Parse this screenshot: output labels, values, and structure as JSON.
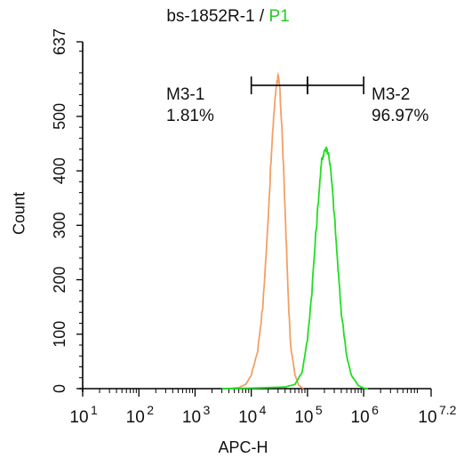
{
  "title": {
    "sample": "bs-1852R-1",
    "separator": " / ",
    "gate": "P1"
  },
  "colors": {
    "control": "#f2a064",
    "sample": "#22dd22",
    "axis": "#000000",
    "title_gate": "#22cc22"
  },
  "chart_data": {
    "type": "histogram",
    "xlabel": "APC-H",
    "ylabel": "Count",
    "x_scale": "log",
    "xlim": [
      10,
      15848932
    ],
    "ylim": [
      0,
      637
    ],
    "x_ticks": [
      {
        "base": "10",
        "exp": "1",
        "value": 10
      },
      {
        "base": "10",
        "exp": "2",
        "value": 100
      },
      {
        "base": "10",
        "exp": "3",
        "value": 1000
      },
      {
        "base": "10",
        "exp": "4",
        "value": 10000
      },
      {
        "base": "10",
        "exp": "5",
        "value": 100000
      },
      {
        "base": "10",
        "exp": "6",
        "value": 1000000
      },
      {
        "base": "10",
        "exp": "7.2",
        "value": 15848932
      }
    ],
    "y_ticks": [
      "0",
      "100",
      "200",
      "300",
      "400",
      "500",
      "637"
    ],
    "series": [
      {
        "role": "control",
        "color": "#f2a064",
        "points": [
          [
            4000,
            0
          ],
          [
            6000,
            2
          ],
          [
            8000,
            8
          ],
          [
            10000,
            25
          ],
          [
            13000,
            70
          ],
          [
            16000,
            150
          ],
          [
            19000,
            270
          ],
          [
            22000,
            400
          ],
          [
            25000,
            500
          ],
          [
            28000,
            560
          ],
          [
            30000,
            572
          ],
          [
            32000,
            555
          ],
          [
            35000,
            480
          ],
          [
            40000,
            330
          ],
          [
            45000,
            180
          ],
          [
            50000,
            80
          ],
          [
            60000,
            25
          ],
          [
            70000,
            6
          ],
          [
            85000,
            0
          ]
        ]
      },
      {
        "role": "sample",
        "color": "#22dd22",
        "points": [
          [
            3000,
            0
          ],
          [
            10000,
            1
          ],
          [
            40000,
            3
          ],
          [
            60000,
            8
          ],
          [
            80000,
            30
          ],
          [
            100000,
            90
          ],
          [
            120000,
            180
          ],
          [
            140000,
            280
          ],
          [
            160000,
            360
          ],
          [
            180000,
            420
          ],
          [
            200000,
            438
          ],
          [
            220000,
            440
          ],
          [
            240000,
            430
          ],
          [
            260000,
            400
          ],
          [
            300000,
            320
          ],
          [
            350000,
            220
          ],
          [
            400000,
            140
          ],
          [
            500000,
            60
          ],
          [
            600000,
            25
          ],
          [
            800000,
            6
          ],
          [
            1000000,
            1
          ],
          [
            1200000,
            0
          ]
        ]
      }
    ],
    "gates": [
      {
        "name": "M3-1",
        "percent": "1.81%",
        "from": 10000,
        "to": 100000,
        "bar_y": 557
      },
      {
        "name": "M3-2",
        "percent": "96.97%",
        "from": 100000,
        "to": 1000000,
        "bar_y": 557
      }
    ]
  }
}
